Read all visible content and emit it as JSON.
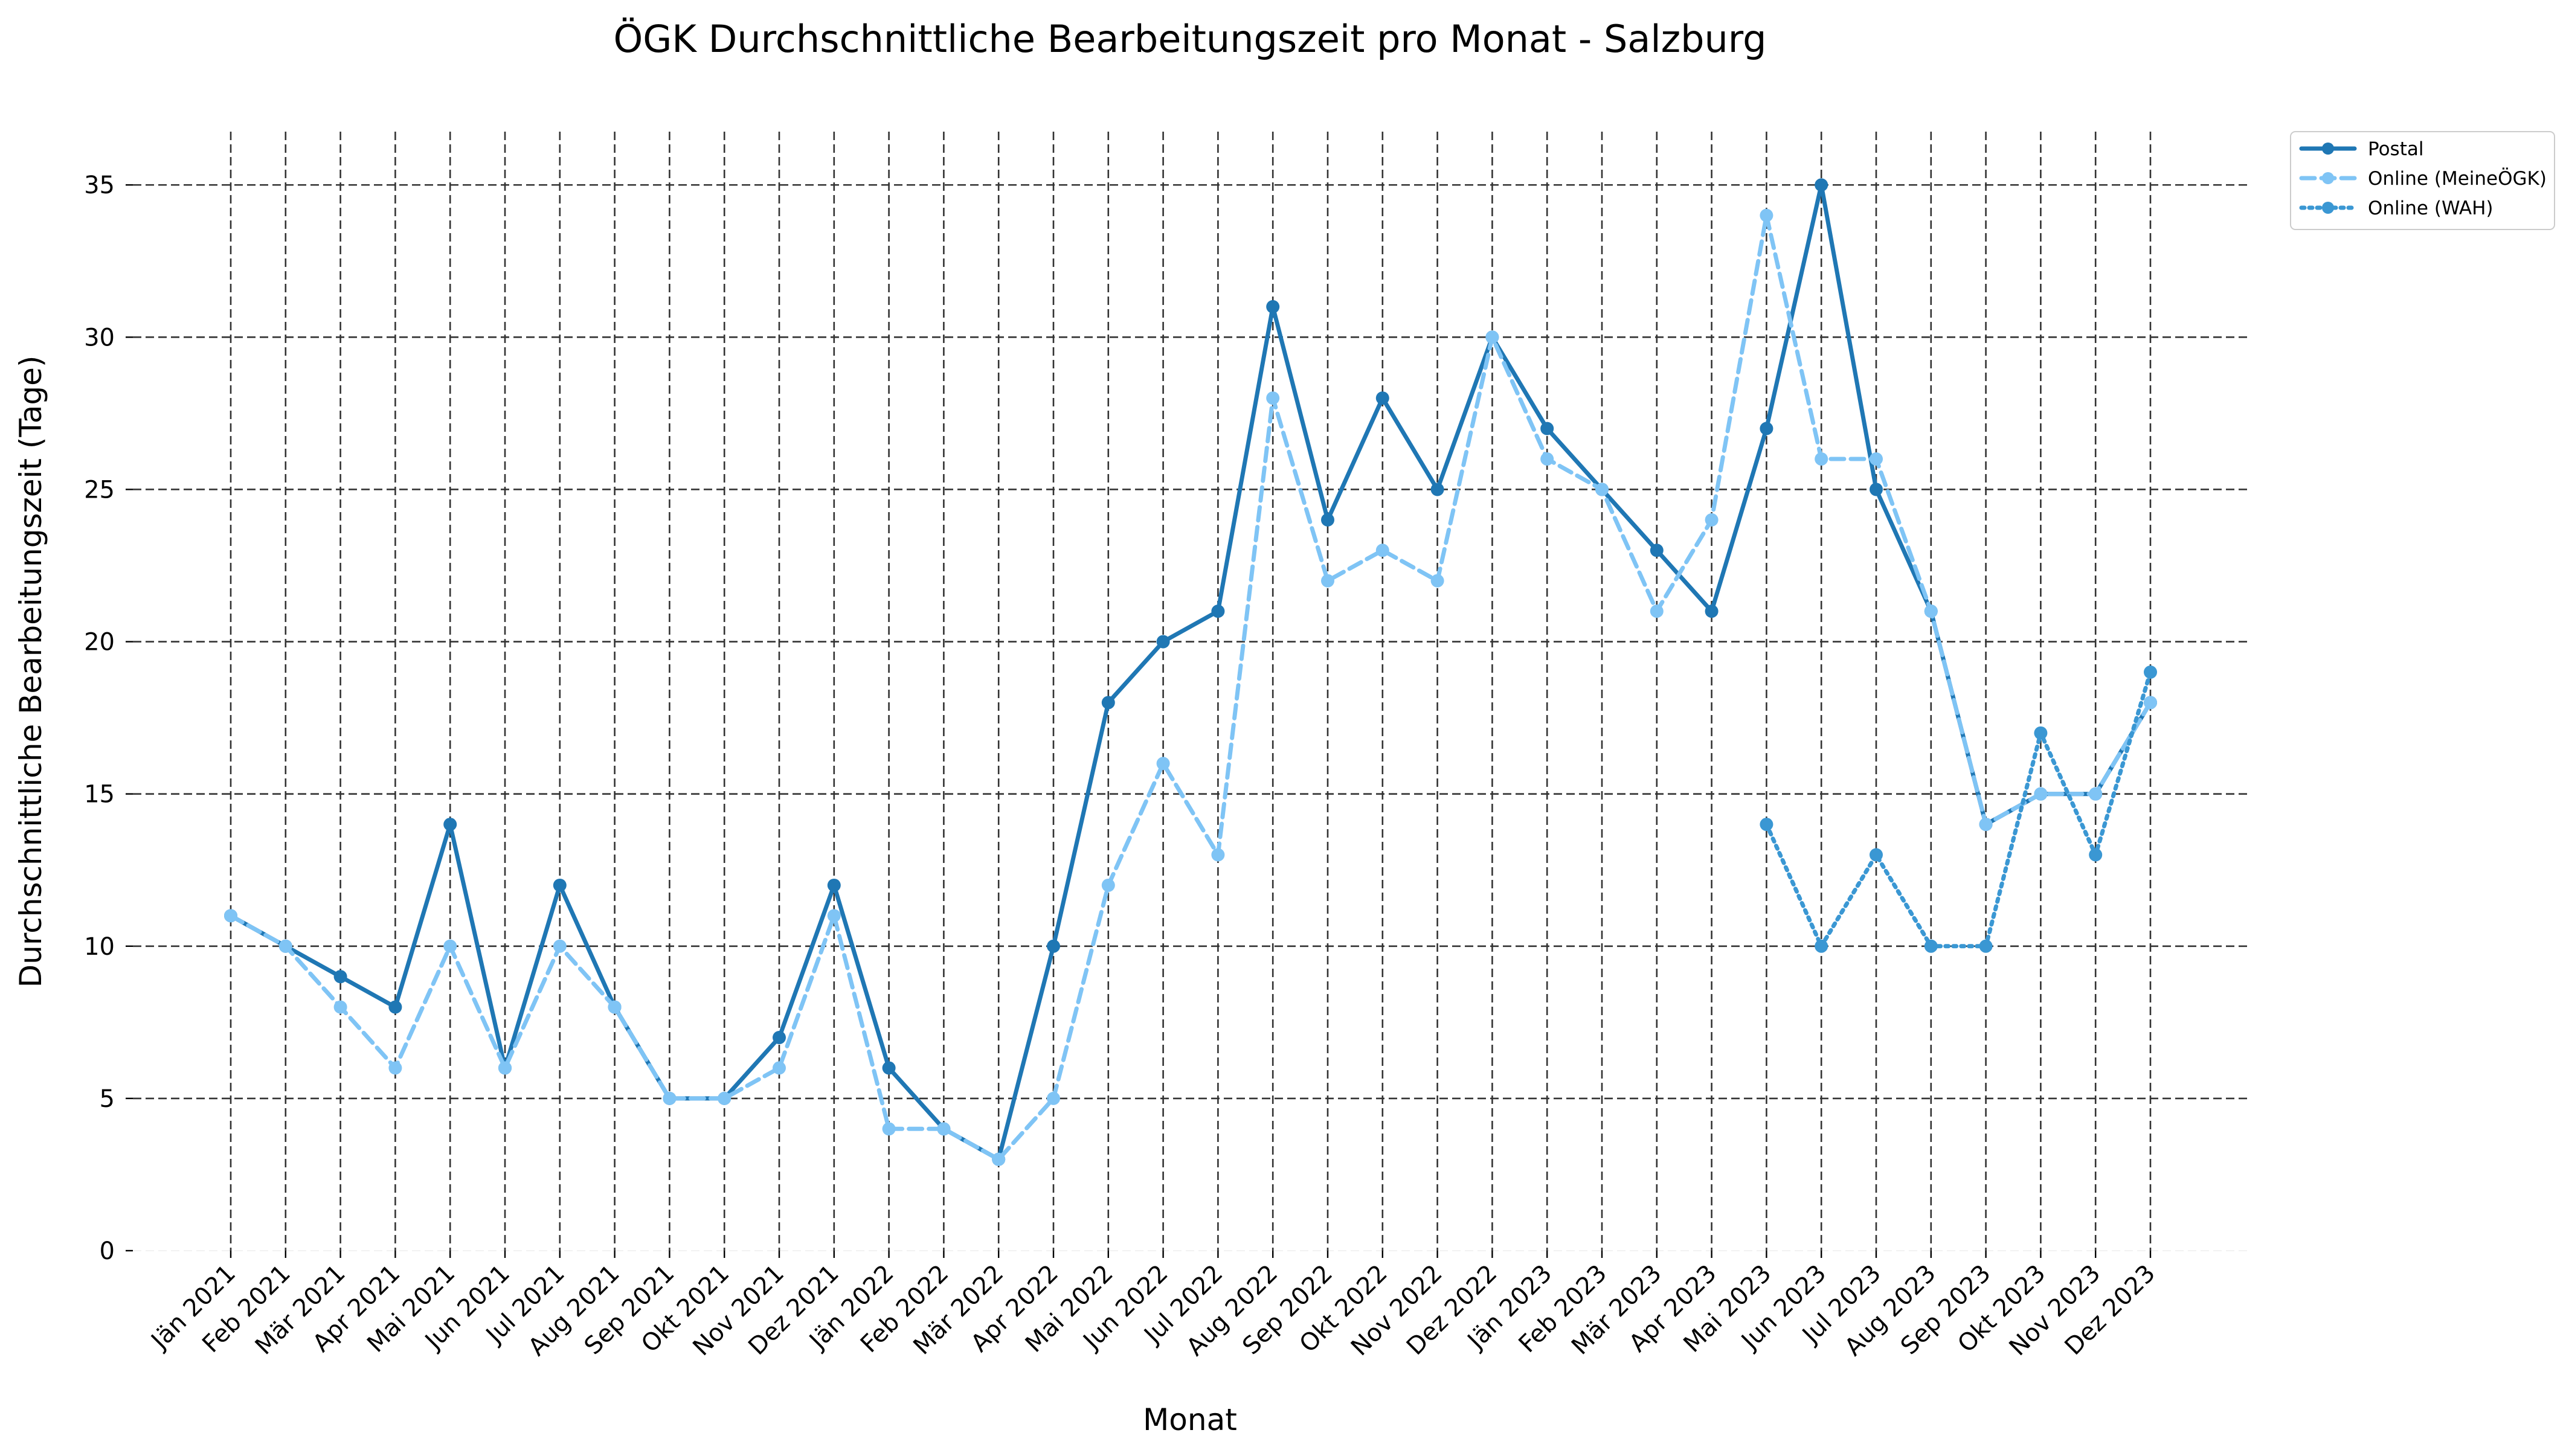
{
  "chart_data": {
    "type": "line",
    "title": "ÖGK Durchschnittliche Bearbeitungszeit pro Monat - Salzburg",
    "xlabel": "Monat",
    "ylabel": "Durchschnittliche Bearbeitungszeit (Tage)",
    "ylim": [
      0,
      36.75
    ],
    "yticks": [
      0,
      5,
      10,
      15,
      20,
      25,
      30,
      35
    ],
    "grid": true,
    "legend_position": "outside top-right",
    "categories": [
      "Jän 2021",
      "Feb 2021",
      "Mär 2021",
      "Apr 2021",
      "Mai 2021",
      "Jun 2021",
      "Jul 2021",
      "Aug 2021",
      "Sep 2021",
      "Okt 2021",
      "Nov 2021",
      "Dez 2021",
      "Jän 2022",
      "Feb 2022",
      "Mär 2022",
      "Apr 2022",
      "Mai 2022",
      "Jun 2022",
      "Jul 2022",
      "Aug 2022",
      "Sep 2022",
      "Okt 2022",
      "Nov 2022",
      "Dez 2022",
      "Jän 2023",
      "Feb 2023",
      "Mär 2023",
      "Apr 2023",
      "Mai 2023",
      "Jun 2023",
      "Jul 2023",
      "Aug 2023",
      "Sep 2023",
      "Okt 2023",
      "Nov 2023",
      "Dez 2023"
    ],
    "series": [
      {
        "name": "Postal",
        "color": "#1f77b4",
        "line_style": "solid",
        "values": [
          11,
          10,
          9,
          8,
          14,
          6,
          12,
          8,
          5,
          5,
          7,
          12,
          6,
          4,
          3,
          10,
          18,
          20,
          21,
          31,
          24,
          28,
          25,
          30,
          27,
          25,
          23,
          21,
          27,
          35,
          25,
          21,
          14,
          15,
          15,
          18
        ]
      },
      {
        "name": "Online (MeineÖGK)",
        "color": "#7fc4f5",
        "line_style": "dashed",
        "values": [
          11,
          10,
          8,
          6,
          10,
          6,
          10,
          8,
          5,
          5,
          6,
          11,
          4,
          4,
          3,
          5,
          12,
          16,
          13,
          28,
          22,
          23,
          22,
          30,
          26,
          25,
          21,
          24,
          34,
          26,
          26,
          21,
          14,
          15,
          15,
          18
        ]
      },
      {
        "name": "Online (WAH)",
        "color": "#3a97d3",
        "line_style": "dotted",
        "values": [
          null,
          null,
          null,
          null,
          null,
          null,
          null,
          null,
          null,
          null,
          null,
          null,
          null,
          null,
          null,
          null,
          null,
          null,
          null,
          null,
          null,
          null,
          null,
          null,
          null,
          null,
          null,
          null,
          14,
          10,
          13,
          10,
          10,
          17,
          13,
          19
        ]
      }
    ]
  }
}
